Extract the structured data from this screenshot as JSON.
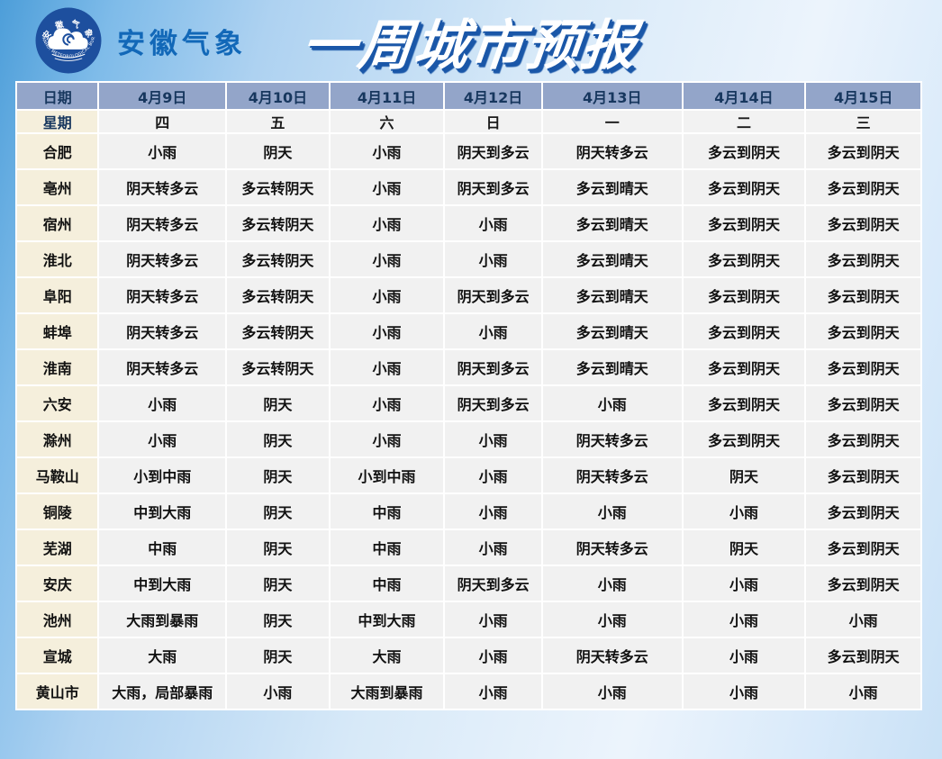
{
  "banner": {
    "org_name": "安徽气象",
    "logo_ring_top_text": "安徽气象",
    "logo_ring_bottom_text": "ANHUI METEOROLOGICAL BUREAU",
    "title": "一周城市预报"
  },
  "colors": {
    "header_bg": "#93a5c9",
    "header_text": "#17375e",
    "city_col_bg": "#f5efdc",
    "data_cell_bg": "#f1f1f1",
    "brand_blue": "#1268b8",
    "title_shadow_blue": "#1a57a8",
    "logo_disc_blue": "#1d4f9e",
    "page_sky_blue": "#4d9ed9"
  },
  "table": {
    "date_header": [
      "日期",
      "4月9日",
      "4月10日",
      "4月11日",
      "4月12日",
      "4月13日",
      "4月14日",
      "4月15日"
    ],
    "week_header": [
      "星期",
      "四",
      "五",
      "六",
      "日",
      "一",
      "二",
      "三"
    ],
    "rows": [
      {
        "city": "合肥",
        "forecast": [
          "小雨",
          "阴天",
          "小雨",
          "阴天到多云",
          "阴天转多云",
          "多云到阴天",
          "多云到阴天"
        ]
      },
      {
        "city": "亳州",
        "forecast": [
          "阴天转多云",
          "多云转阴天",
          "小雨",
          "阴天到多云",
          "多云到晴天",
          "多云到阴天",
          "多云到阴天"
        ]
      },
      {
        "city": "宿州",
        "forecast": [
          "阴天转多云",
          "多云转阴天",
          "小雨",
          "小雨",
          "多云到晴天",
          "多云到阴天",
          "多云到阴天"
        ]
      },
      {
        "city": "淮北",
        "forecast": [
          "阴天转多云",
          "多云转阴天",
          "小雨",
          "小雨",
          "多云到晴天",
          "多云到阴天",
          "多云到阴天"
        ]
      },
      {
        "city": "阜阳",
        "forecast": [
          "阴天转多云",
          "多云转阴天",
          "小雨",
          "阴天到多云",
          "多云到晴天",
          "多云到阴天",
          "多云到阴天"
        ]
      },
      {
        "city": "蚌埠",
        "forecast": [
          "阴天转多云",
          "多云转阴天",
          "小雨",
          "小雨",
          "多云到晴天",
          "多云到阴天",
          "多云到阴天"
        ]
      },
      {
        "city": "淮南",
        "forecast": [
          "阴天转多云",
          "多云转阴天",
          "小雨",
          "阴天到多云",
          "多云到晴天",
          "多云到阴天",
          "多云到阴天"
        ]
      },
      {
        "city": "六安",
        "forecast": [
          "小雨",
          "阴天",
          "小雨",
          "阴天到多云",
          "小雨",
          "多云到阴天",
          "多云到阴天"
        ]
      },
      {
        "city": "滁州",
        "forecast": [
          "小雨",
          "阴天",
          "小雨",
          "小雨",
          "阴天转多云",
          "多云到阴天",
          "多云到阴天"
        ]
      },
      {
        "city": "马鞍山",
        "forecast": [
          "小到中雨",
          "阴天",
          "小到中雨",
          "小雨",
          "阴天转多云",
          "阴天",
          "多云到阴天"
        ]
      },
      {
        "city": "铜陵",
        "forecast": [
          "中到大雨",
          "阴天",
          "中雨",
          "小雨",
          "小雨",
          "小雨",
          "多云到阴天"
        ]
      },
      {
        "city": "芜湖",
        "forecast": [
          "中雨",
          "阴天",
          "中雨",
          "小雨",
          "阴天转多云",
          "阴天",
          "多云到阴天"
        ]
      },
      {
        "city": "安庆",
        "forecast": [
          "中到大雨",
          "阴天",
          "中雨",
          "阴天到多云",
          "小雨",
          "小雨",
          "多云到阴天"
        ]
      },
      {
        "city": "池州",
        "forecast": [
          "大雨到暴雨",
          "阴天",
          "中到大雨",
          "小雨",
          "小雨",
          "小雨",
          "小雨"
        ]
      },
      {
        "city": "宣城",
        "forecast": [
          "大雨",
          "阴天",
          "大雨",
          "小雨",
          "阴天转多云",
          "小雨",
          "多云到阴天"
        ]
      },
      {
        "city": "黄山市",
        "forecast": [
          "大雨，局部暴雨",
          "小雨",
          "大雨到暴雨",
          "小雨",
          "小雨",
          "小雨",
          "小雨"
        ]
      }
    ]
  }
}
